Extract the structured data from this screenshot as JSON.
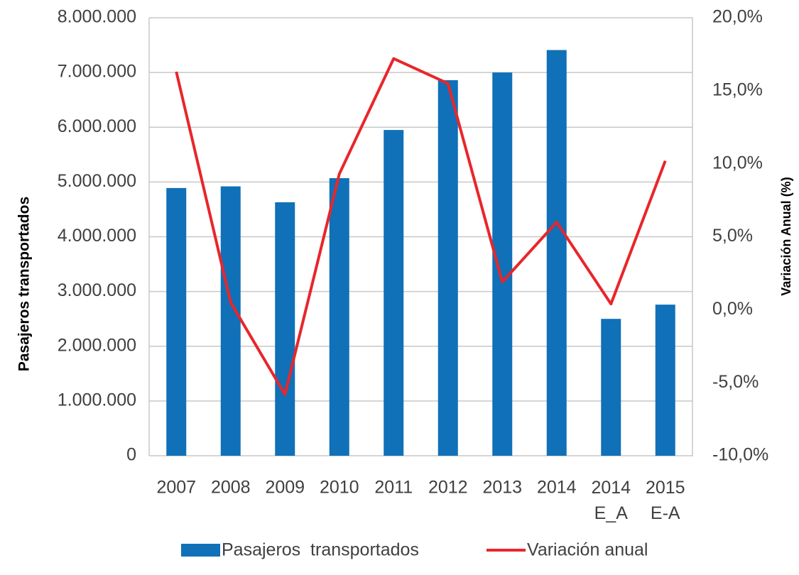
{
  "chart_data": {
    "type": "bar_line",
    "y_axis_label": "Pasajeros transportados",
    "y2_axis_label": "Variación Anual (%)",
    "categories": [
      "2007",
      "2008",
      "2009",
      "2010",
      "2011",
      "2012",
      "2013",
      "2014",
      "2014\nE_A",
      "2015\nE-A"
    ],
    "series": [
      {
        "name": "Pasajeros  transportados",
        "type": "bar",
        "color": "#1070b8",
        "values": [
          4890000,
          4920000,
          4630000,
          5070000,
          5950000,
          6860000,
          7000000,
          7410000,
          2500000,
          2760000
        ]
      },
      {
        "name": "Variación anual",
        "type": "line",
        "color": "#e8262b",
        "axis": "y2",
        "values": [
          16.3,
          0.5,
          -5.8,
          9.3,
          17.2,
          15.5,
          1.9,
          6.0,
          0.4,
          10.2
        ]
      }
    ],
    "ylim": [
      0,
      8000000
    ],
    "yticks": [
      0,
      {
        "value": 1000000,
        "label": "1.000.000"
      },
      {
        "value": 2000000,
        "label": "2.000.000"
      },
      {
        "value": 3000000,
        "label": "3.000.000"
      },
      {
        "value": 4000000,
        "label": "4.000.000"
      },
      {
        "value": 5000000,
        "label": "5.000.000"
      },
      {
        "value": 6000000,
        "label": "6.000.000"
      },
      {
        "value": 7000000,
        "label": "7.000.000"
      },
      {
        "value": 8000000,
        "label": "8.000.000"
      }
    ],
    "y2lim": [
      -10,
      20
    ],
    "y2ticks": [
      {
        "value": -10,
        "label": "-10,0%"
      },
      {
        "value": -5,
        "label": "-5,0%"
      },
      {
        "value": 0,
        "label": "0,0%"
      },
      {
        "value": 5,
        "label": "5,0%"
      },
      {
        "value": 10,
        "label": "10,0%"
      },
      {
        "value": 15,
        "label": "15,0%"
      },
      {
        "value": 20,
        "label": "20,0%"
      }
    ],
    "grid": true,
    "legend": "bottom"
  }
}
